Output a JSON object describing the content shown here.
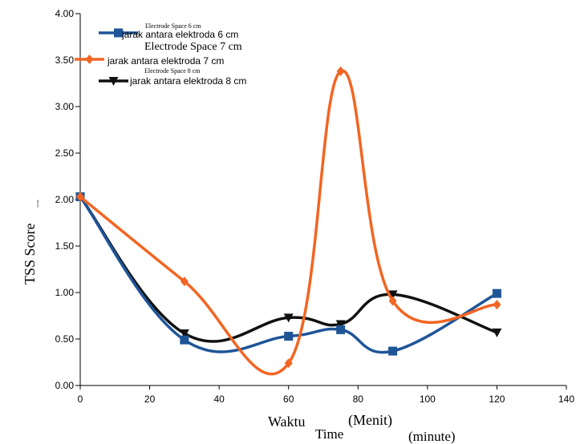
{
  "chart_data": {
    "type": "line",
    "xlabel": {
      "main": "Waktu",
      "sub1": "Time",
      "mid": "(Menit)",
      "sub2": "(minute)"
    },
    "ylabel": {
      "main": "TSS Score",
      "sub": "Ntu/Mg"
    },
    "xlim": [
      0,
      140
    ],
    "ylim": [
      0,
      4
    ],
    "x_ticks": [
      "0",
      "20",
      "40",
      "60",
      "80",
      "100",
      "120",
      "140"
    ],
    "y_ticks": [
      "0.00",
      "0.50",
      "1.00",
      "1.50",
      "2.00",
      "2.50",
      "3.00",
      "3.50",
      "4.00"
    ],
    "series": [
      {
        "name": "jarak antara elektroda 6 cm",
        "alt_name": "Electrode Space 6 cm",
        "color": "#1f5597",
        "marker": "square",
        "x": [
          0,
          30,
          60,
          75,
          90,
          120
        ],
        "y": [
          2.03,
          0.49,
          0.53,
          0.6,
          0.37,
          0.99
        ]
      },
      {
        "name": "jarak antara elektroda 7 cm",
        "alt_name": "Electrode Space 7 cm",
        "color": "#f26522",
        "marker": "diamond",
        "x": [
          0,
          30,
          60,
          75,
          90,
          120
        ],
        "y": [
          2.03,
          1.12,
          0.24,
          3.38,
          0.91,
          0.87
        ]
      },
      {
        "name": "jarak antara elektroda 8 cm",
        "alt_name": "Electrode Space 8 cm",
        "color": "#111111",
        "marker": "triangle-down",
        "x": [
          0,
          30,
          60,
          75,
          90,
          120
        ],
        "y": [
          2.03,
          0.56,
          0.73,
          0.66,
          0.98,
          0.57
        ]
      }
    ],
    "legend_position": "top-left"
  }
}
